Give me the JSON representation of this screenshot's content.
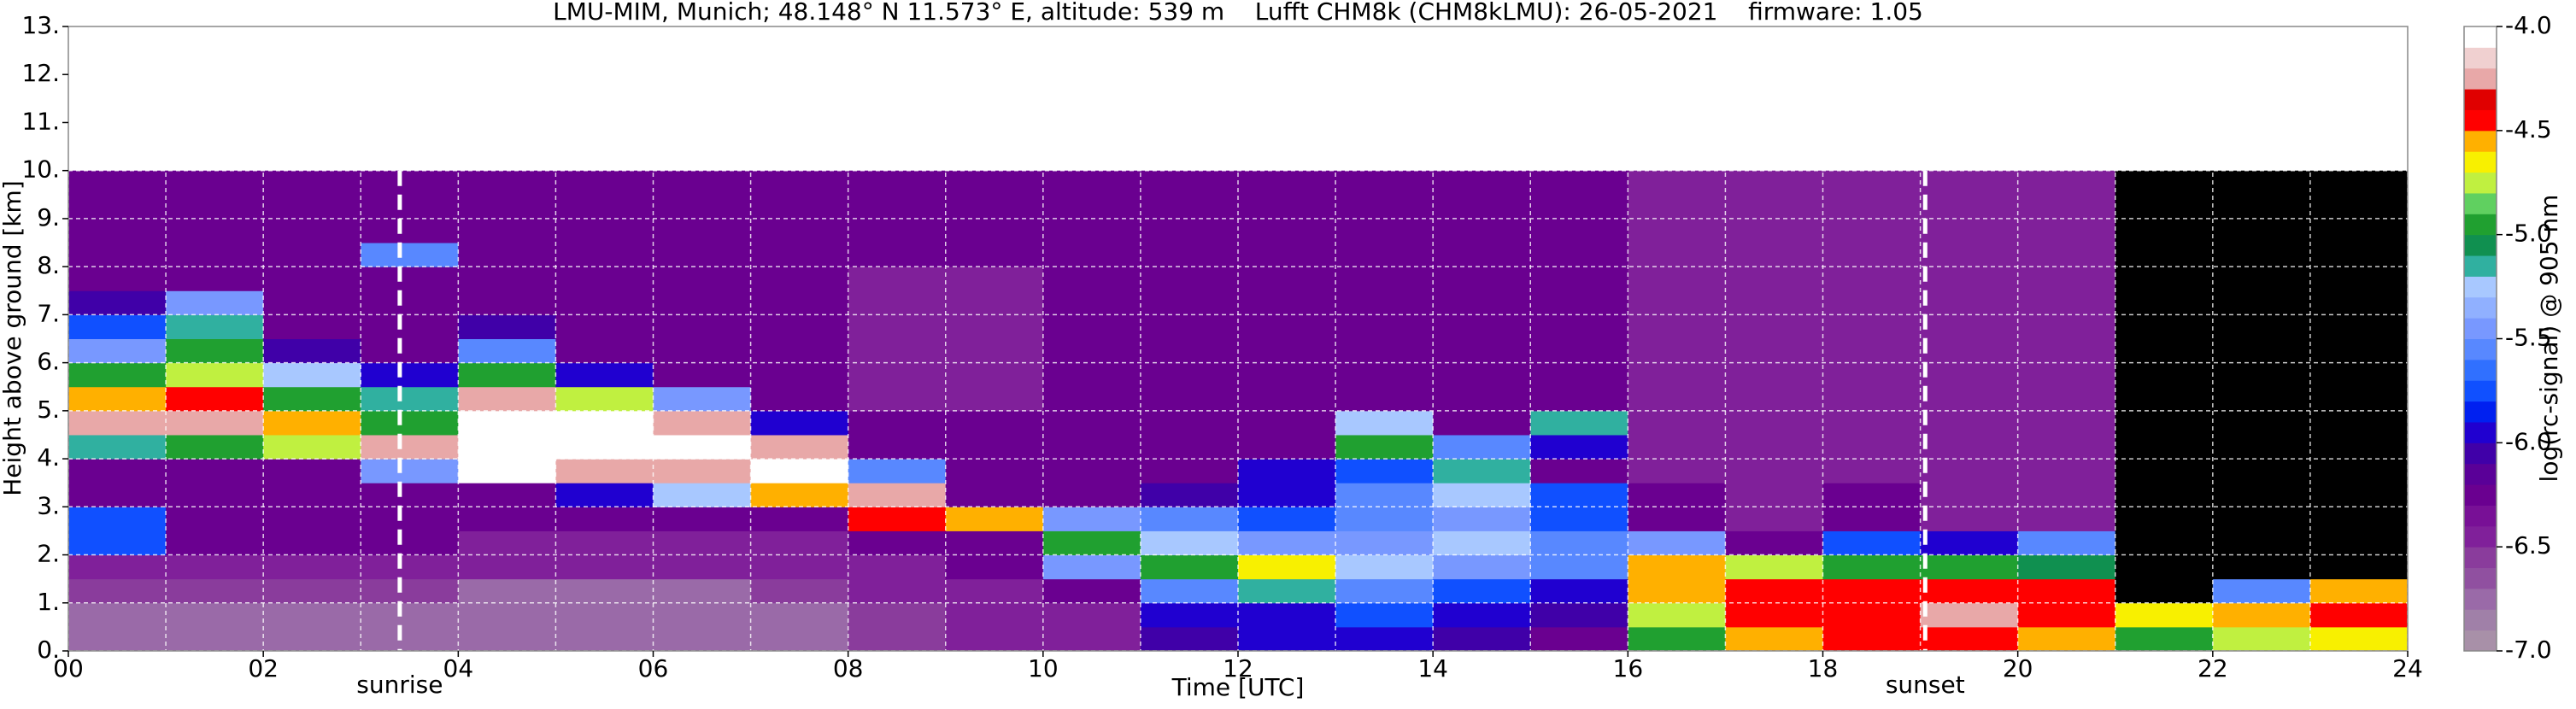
{
  "chart_data": {
    "type": "heatmap",
    "title": "LMU-MIM, Munich; 48.148° N 11.573° E, altitude: 539 m    Lufft CHM8k (CHM8kLMU): 26-05-2021    firmware: 1.05",
    "xlabel": "Time [UTC]",
    "ylabel": "Height above ground [km]",
    "colorbar_label": "log(rc-signal) @ 905 nm",
    "xlim": [
      0,
      24
    ],
    "ylim": [
      0,
      13
    ],
    "xticks": [
      {
        "value": 0,
        "label": "00"
      },
      {
        "value": 2,
        "label": "02"
      },
      {
        "value": 4,
        "label": "04"
      },
      {
        "value": 6,
        "label": "06"
      },
      {
        "value": 8,
        "label": "08"
      },
      {
        "value": 10,
        "label": "10"
      },
      {
        "value": 12,
        "label": "12"
      },
      {
        "value": 14,
        "label": "14"
      },
      {
        "value": 16,
        "label": "16"
      },
      {
        "value": 18,
        "label": "18"
      },
      {
        "value": 20,
        "label": "20"
      },
      {
        "value": 22,
        "label": "22"
      },
      {
        "value": 24,
        "label": "24"
      }
    ],
    "xminorticks": [
      1,
      3,
      5,
      7,
      9,
      11,
      13,
      15,
      17,
      19,
      21,
      23
    ],
    "yticks": [
      {
        "value": 0,
        "label": "0."
      },
      {
        "value": 1,
        "label": "1."
      },
      {
        "value": 2,
        "label": "2."
      },
      {
        "value": 3,
        "label": "3."
      },
      {
        "value": 4,
        "label": "4."
      },
      {
        "value": 5,
        "label": "5."
      },
      {
        "value": 6,
        "label": "6."
      },
      {
        "value": 7,
        "label": "7."
      },
      {
        "value": 8,
        "label": "8."
      },
      {
        "value": 9,
        "label": "9."
      },
      {
        "value": 10,
        "label": "10."
      },
      {
        "value": 11,
        "label": "11."
      },
      {
        "value": 12,
        "label": "12."
      },
      {
        "value": 13,
        "label": "13."
      }
    ],
    "grid": true,
    "grid_color": "#ffffff",
    "clim": [
      -7,
      -4
    ],
    "cticks": [
      {
        "value": -7,
        "label": "-7.0"
      },
      -6.5,
      {
        "value": -6,
        "label": "-6.0"
      },
      -5.5,
      {
        "value": -5,
        "label": "-5.0"
      },
      -4.5,
      {
        "value": -4,
        "label": "-4.0"
      }
    ],
    "colormap": [
      "#a890a8",
      "#a080a8",
      "#9a6aa8",
      "#9050a0",
      "#8a3c9c",
      "#80209a",
      "#781096",
      "#6a0090",
      "#5a0098",
      "#4000a8",
      "#2000d0",
      "#0020f0",
      "#1050ff",
      "#3070ff",
      "#5888ff",
      "#7898ff",
      "#90b0ff",
      "#a8c8ff",
      "#30b0a0",
      "#109050",
      "#20a030",
      "#60d060",
      "#c0f040",
      "#f8f000",
      "#ffb000",
      "#ff0000",
      "#e00000",
      "#e8a8a8",
      "#f0d0d0",
      "#ffffff"
    ],
    "under_color": "#000000",
    "over_color": "#ffffff",
    "xbins": [
      0,
      1,
      2,
      3,
      4,
      5,
      6,
      7,
      8,
      9,
      10,
      11,
      12,
      13,
      14,
      15,
      16,
      17,
      18,
      19,
      20,
      21,
      22,
      23,
      24
    ],
    "ybins": [
      0,
      0.5,
      1,
      1.5,
      2,
      2.5,
      3,
      3.5,
      4,
      4.5,
      5,
      5.5,
      6,
      6.5,
      7,
      7.5,
      8,
      8.5,
      9,
      9.5,
      10
    ],
    "values": [
      [
        -6.7,
        -6.7,
        -6.7,
        -6.7,
        -6.8,
        -6.8,
        -6.8,
        -6.7,
        -6.6,
        -6.5,
        -6.5,
        -6.1,
        -6.0,
        -5.9,
        -6.1,
        -6.2,
        -4.9,
        -4.6,
        -4.5,
        -4.5,
        -4.6,
        -4.9,
        -4.8,
        -4.7
      ],
      [
        -6.7,
        -6.7,
        -6.7,
        -6.7,
        -6.8,
        -6.8,
        -6.8,
        -6.7,
        -6.6,
        -6.5,
        -6.4,
        -6.0,
        -5.9,
        -5.8,
        -6.0,
        -6.1,
        -4.8,
        -4.5,
        -4.4,
        -4.3,
        -4.5,
        -4.7,
        -4.6,
        -4.5
      ],
      [
        -6.6,
        -6.6,
        -6.6,
        -6.6,
        -6.7,
        -6.7,
        -6.7,
        -6.6,
        -6.5,
        -6.4,
        -6.2,
        -5.6,
        -5.2,
        -5.6,
        -5.8,
        -5.9,
        -4.6,
        -4.5,
        -4.4,
        -4.4,
        -4.5,
        -7.5,
        -5.6,
        -4.6
      ],
      [
        -6.4,
        -6.4,
        -6.4,
        -6.5,
        -6.5,
        -6.5,
        -6.5,
        -6.5,
        -6.4,
        -6.3,
        -5.4,
        -5.0,
        -4.7,
        -5.3,
        -5.4,
        -5.6,
        -4.6,
        -4.8,
        -4.9,
        -5.0,
        -5.1,
        -7.5,
        -7.5,
        -7.5
      ],
      [
        -5.8,
        -6.3,
        -6.3,
        -6.3,
        -6.4,
        -6.4,
        -6.4,
        -6.4,
        -6.3,
        -6.2,
        -5.0,
        -5.3,
        -5.5,
        -5.4,
        -5.3,
        -5.6,
        -5.4,
        -6.2,
        -5.8,
        -6.0,
        -5.6,
        -7.5,
        -7.5,
        -7.5
      ],
      [
        -5.8,
        -6.3,
        -6.3,
        -6.3,
        -6.3,
        -6.3,
        -6.3,
        -6.2,
        -4.5,
        -4.6,
        -5.4,
        -5.6,
        -5.8,
        -5.6,
        -5.4,
        -5.8,
        -6.3,
        -6.4,
        -6.2,
        -6.4,
        -6.4,
        -7.5,
        -7.5,
        -7.5
      ],
      [
        -6.3,
        -6.3,
        -6.3,
        -6.3,
        -6.2,
        -6.0,
        -5.3,
        -4.6,
        -4.2,
        -6.3,
        -6.3,
        -6.1,
        -5.9,
        -5.6,
        -5.3,
        -5.7,
        -6.3,
        -6.4,
        -6.3,
        -6.4,
        -6.4,
        -7.5,
        -7.5,
        -7.5
      ],
      [
        -6.3,
        -6.3,
        -6.3,
        -5.4,
        -4.1,
        -4.2,
        -4.3,
        -4.1,
        -5.6,
        -6.3,
        -6.3,
        -6.3,
        -6.0,
        -5.7,
        -5.2,
        -6.2,
        -6.4,
        -6.4,
        -6.4,
        -6.4,
        -6.4,
        -7.5,
        -7.5,
        -7.5
      ],
      [
        -5.2,
        -5.0,
        -4.8,
        -4.2,
        -4.0,
        -4.0,
        -4.0,
        -4.3,
        -6.3,
        -6.3,
        -6.3,
        -6.3,
        -6.2,
        -5.0,
        -5.6,
        -6.0,
        -6.4,
        -6.4,
        -6.4,
        -6.4,
        -6.4,
        -7.5,
        -7.5,
        -7.5
      ],
      [
        -4.3,
        -4.2,
        -4.6,
        -5.0,
        -4.0,
        -4.1,
        -4.3,
        -6.0,
        -6.3,
        -6.3,
        -6.3,
        -6.3,
        -6.3,
        -5.3,
        -6.2,
        -5.2,
        -6.4,
        -6.4,
        -6.4,
        -6.4,
        -6.4,
        -7.5,
        -7.5,
        -7.5
      ],
      [
        -4.6,
        -4.5,
        -5.0,
        -5.2,
        -4.3,
        -4.8,
        -5.5,
        -6.3,
        -6.4,
        -6.4,
        -6.3,
        -6.3,
        -6.3,
        -6.3,
        -6.3,
        -6.3,
        -6.4,
        -6.4,
        -6.4,
        -6.4,
        -6.4,
        -7.5,
        -7.5,
        -7.5
      ],
      [
        -5.0,
        -4.8,
        -5.3,
        -6.0,
        -5.0,
        -6.0,
        -6.2,
        -6.3,
        -6.5,
        -6.4,
        -6.3,
        -6.3,
        -6.3,
        -6.3,
        -6.3,
        -6.3,
        -6.4,
        -6.4,
        -6.4,
        -6.4,
        -6.4,
        -7.5,
        -7.5,
        -7.5
      ],
      [
        -5.4,
        -5.0,
        -6.1,
        -6.3,
        -5.6,
        -6.3,
        -6.3,
        -6.3,
        -6.5,
        -6.5,
        -6.3,
        -6.3,
        -6.3,
        -6.3,
        -6.3,
        -6.3,
        -6.4,
        -6.4,
        -6.4,
        -6.4,
        -6.4,
        -7.5,
        -7.5,
        -7.5
      ],
      [
        -5.8,
        -5.2,
        -6.3,
        -6.3,
        -6.1,
        -6.3,
        -6.3,
        -6.3,
        -6.5,
        -6.5,
        -6.3,
        -6.3,
        -6.3,
        -6.3,
        -6.3,
        -6.3,
        -6.4,
        -6.4,
        -6.4,
        -6.4,
        -6.4,
        -7.5,
        -7.5,
        -7.5
      ],
      [
        -6.1,
        -5.5,
        -6.3,
        -6.3,
        -6.3,
        -6.3,
        -6.3,
        -6.3,
        -6.4,
        -6.4,
        -6.3,
        -6.3,
        -6.3,
        -6.3,
        -6.3,
        -6.3,
        -6.4,
        -6.4,
        -6.4,
        -6.4,
        -6.4,
        -7.5,
        -7.5,
        -7.5
      ],
      [
        -6.3,
        -6.3,
        -6.3,
        -6.3,
        -6.3,
        -6.3,
        -6.3,
        -6.3,
        -6.4,
        -6.4,
        -6.3,
        -6.3,
        -6.3,
        -6.3,
        -6.3,
        -6.3,
        -6.4,
        -6.4,
        -6.4,
        -6.4,
        -6.4,
        -7.5,
        -7.5,
        -7.5
      ],
      [
        -6.3,
        -6.3,
        -6.3,
        -5.6,
        -6.3,
        -6.3,
        -6.3,
        -6.3,
        -6.3,
        -6.3,
        -6.3,
        -6.3,
        -6.3,
        -6.3,
        -6.3,
        -6.3,
        -6.4,
        -6.4,
        -6.4,
        -6.4,
        -6.4,
        -7.5,
        -7.5,
        -7.5
      ],
      [
        -6.3,
        -6.3,
        -6.3,
        -6.3,
        -6.3,
        -6.3,
        -6.3,
        -6.3,
        -6.3,
        -6.3,
        -6.3,
        -6.3,
        -6.3,
        -6.3,
        -6.3,
        -6.3,
        -6.4,
        -6.4,
        -6.4,
        -6.4,
        -6.4,
        -7.5,
        -7.5,
        -7.5
      ],
      [
        -6.3,
        -6.3,
        -6.3,
        -6.3,
        -6.3,
        -6.3,
        -6.3,
        -6.3,
        -6.3,
        -6.3,
        -6.3,
        -6.3,
        -6.3,
        -6.3,
        -6.3,
        -6.3,
        -6.4,
        -6.4,
        -6.4,
        -6.4,
        -6.4,
        -7.5,
        -7.5,
        -7.5
      ],
      [
        -6.3,
        -6.3,
        -6.3,
        -6.3,
        -6.3,
        -6.3,
        -6.3,
        -6.3,
        -6.3,
        -6.3,
        -6.3,
        -6.3,
        -6.3,
        -6.3,
        -6.3,
        -6.3,
        -6.4,
        -6.4,
        -6.4,
        -6.4,
        -6.4,
        -7.5,
        -7.5,
        -7.5
      ]
    ],
    "annotations": [
      {
        "label": "sunrise",
        "x": 3.4
      },
      {
        "label": "sunset",
        "x": 19.05
      }
    ]
  }
}
